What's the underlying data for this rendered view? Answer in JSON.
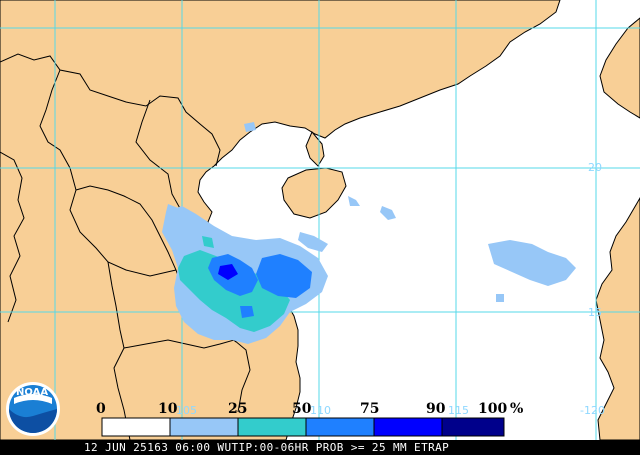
{
  "map": {
    "colors": {
      "land": "#f8cf96",
      "water": "#ffffff",
      "grid": "#56d8e8",
      "border": "#000000",
      "footer_bg": "#000000",
      "footer_text": "#ffffff"
    },
    "grid_labels": {
      "lat_20": "20",
      "lat_15": "15",
      "lon_105": "105",
      "lon_110": "110",
      "lon_115": "115",
      "lon_120": "-120"
    },
    "legend": {
      "unit": "%",
      "ticks": [
        {
          "value": 0,
          "label": "0"
        },
        {
          "value": 10,
          "label": "10"
        },
        {
          "value": 25,
          "label": "25"
        },
        {
          "value": 50,
          "label": "50"
        },
        {
          "value": 75,
          "label": "75"
        },
        {
          "value": 90,
          "label": "90"
        },
        {
          "value": 100,
          "label": "100"
        }
      ],
      "colors": [
        "#ffffff",
        "#97c7f7",
        "#33cccc",
        "#1f80ff",
        "#0000ff",
        "#00008b"
      ]
    },
    "logo_text": "NOAA",
    "logo_icon": "noaa-logo-icon",
    "footer": "12 JUN 25163 06:00 WUTIP:00-06HR PROB >= 25 MM ETRAP"
  }
}
